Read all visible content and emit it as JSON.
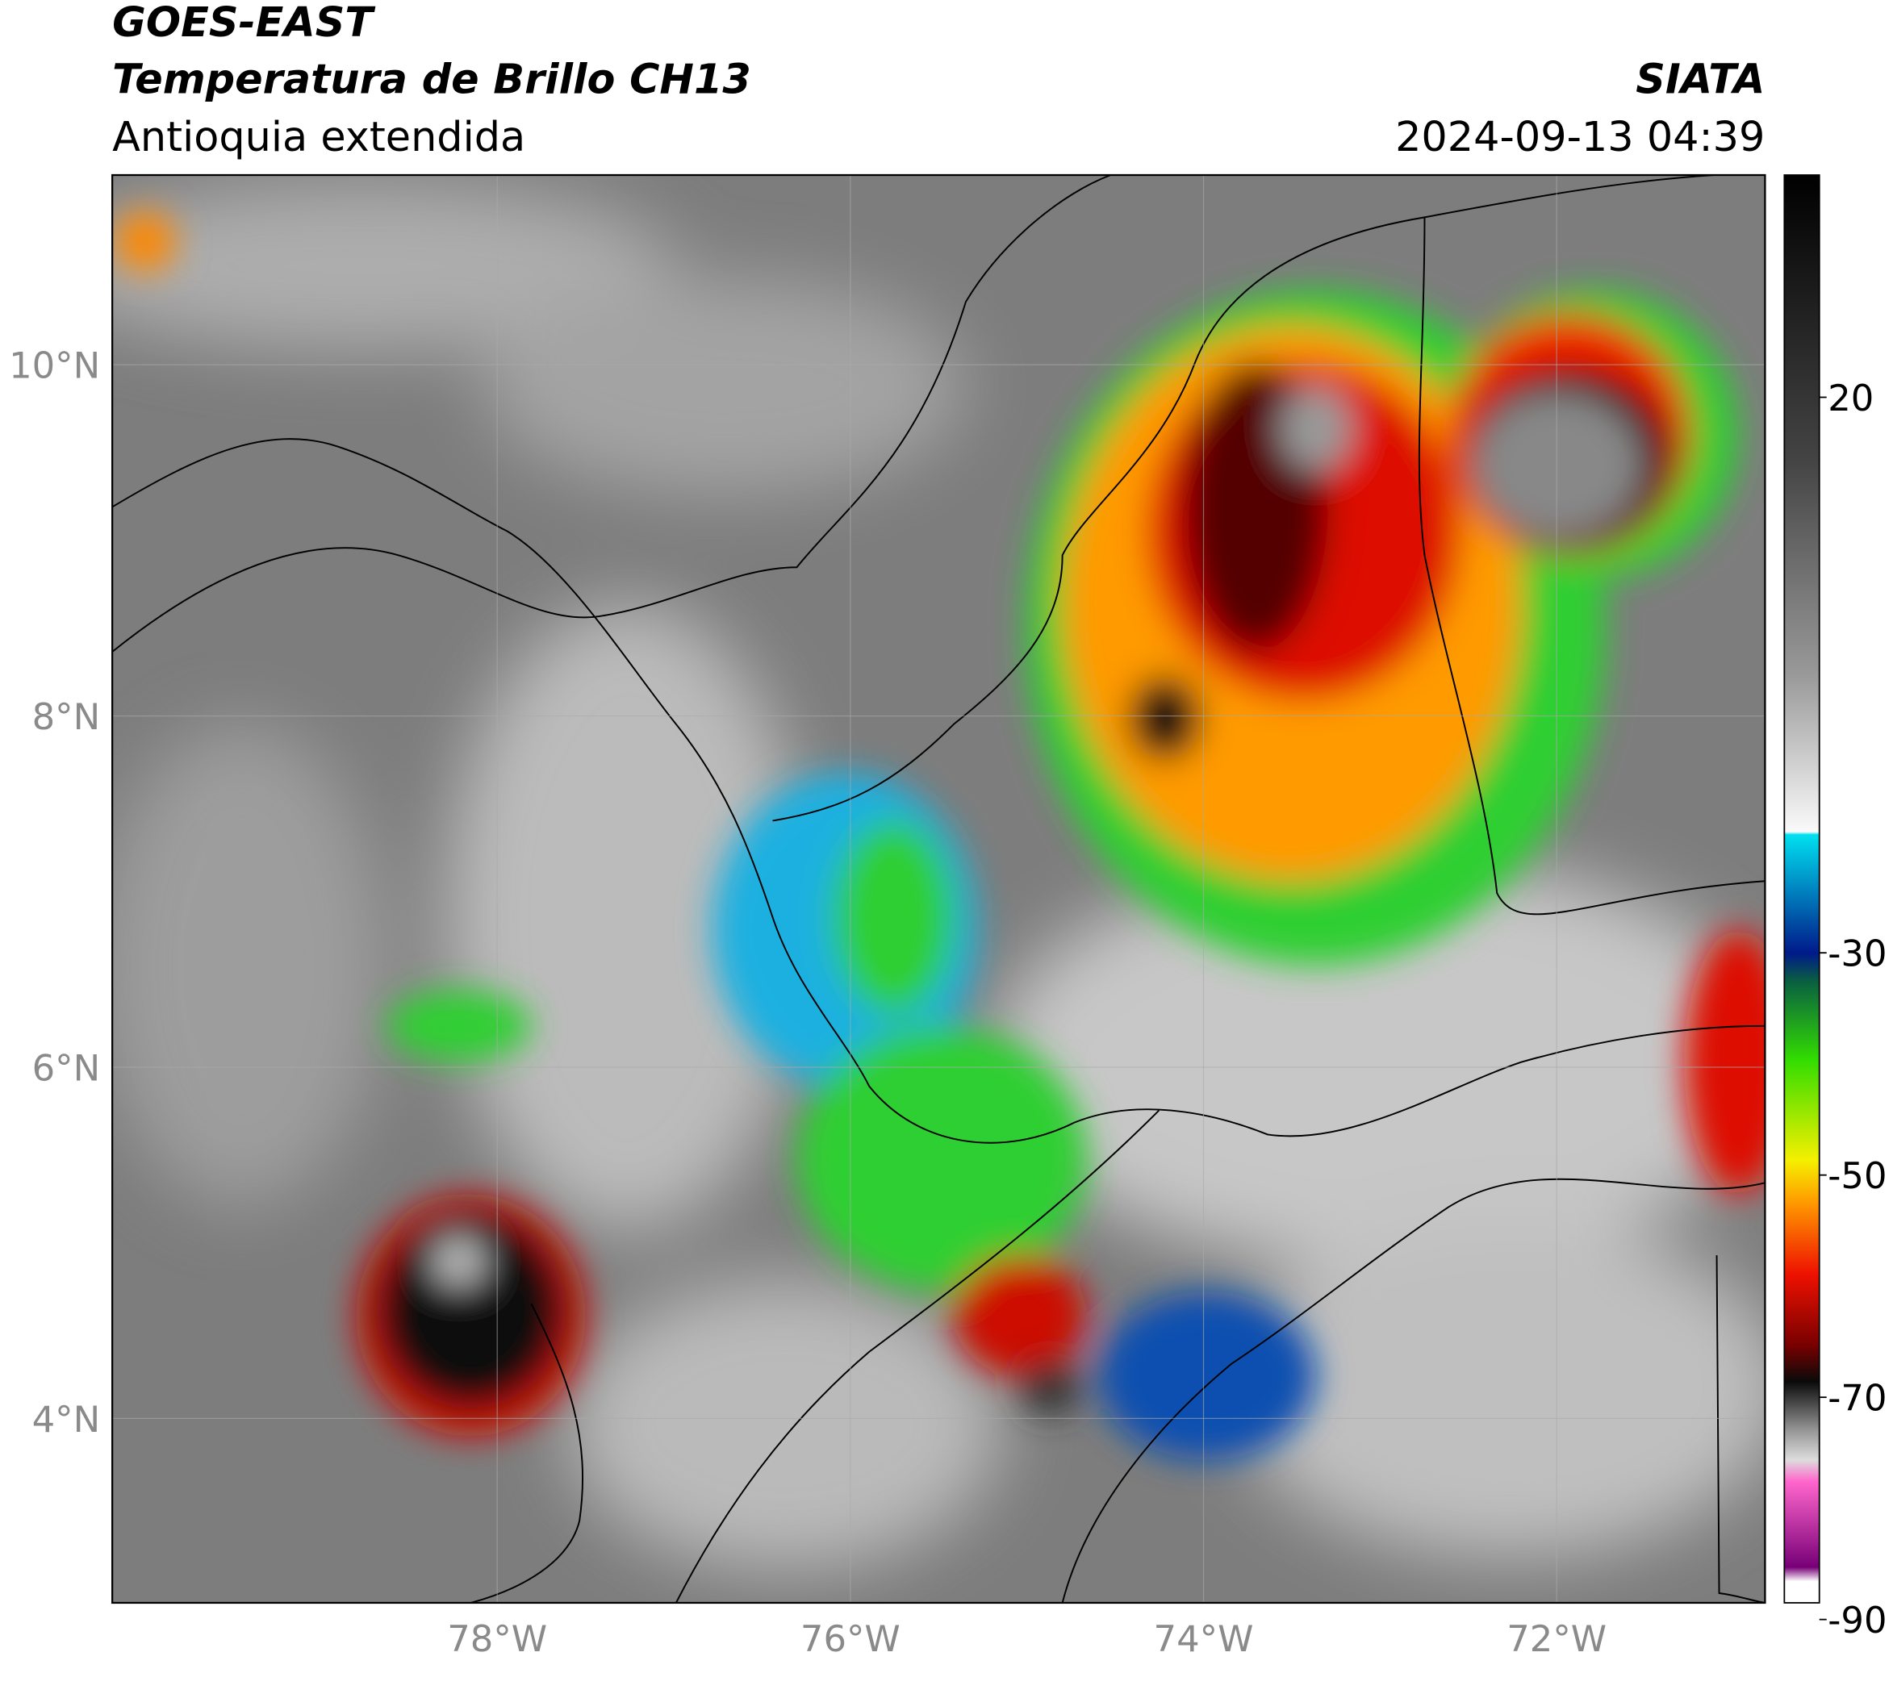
{
  "header": {
    "title": "GOES-EAST",
    "subtitle": "Temperatura de Brillo CH13",
    "region": "Antioquia extendida",
    "source": "SIATA",
    "datetime": "2024-09-13 04:39"
  },
  "map": {
    "xlim": [
      -80.18,
      -70.82
    ],
    "ylim": [
      2.95,
      11.08
    ],
    "xticks": [
      {
        "value": -78,
        "label": "78°W"
      },
      {
        "value": -76,
        "label": "76°W"
      },
      {
        "value": -74,
        "label": "74°W"
      },
      {
        "value": -72,
        "label": "72°W"
      }
    ],
    "yticks": [
      {
        "value": 10,
        "label": "10°N"
      },
      {
        "value": 8,
        "label": "8°N"
      },
      {
        "value": 6,
        "label": "6°N"
      },
      {
        "value": 4,
        "label": "4°N"
      }
    ]
  },
  "colorbar": {
    "clim": [
      -88.5,
      40
    ],
    "ticks": [
      20,
      -30,
      -50,
      -70,
      -90
    ]
  }
}
